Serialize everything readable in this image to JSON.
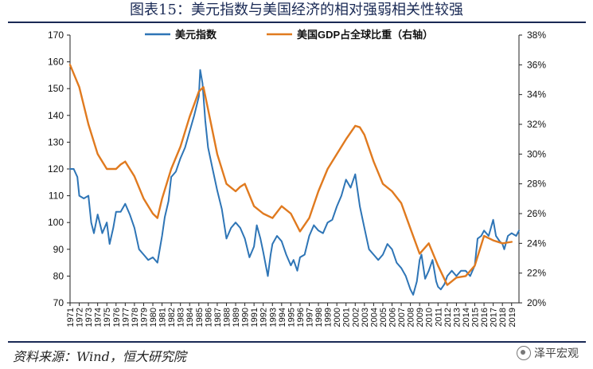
{
  "title": "图表15：美元指数与美国经济的相对强弱相关性较强",
  "source": "资料来源：Wind，恒大研究院",
  "watermark": "泽平宏观",
  "colors": {
    "usd": "#2E75B6",
    "gdp": "#E07A1F",
    "axis": "#222222",
    "title": "#1a2a55"
  },
  "chart_data": {
    "type": "line",
    "title": "图表15：美元指数与美国经济的相对强弱相关性较强",
    "x_ticks": [
      "1971",
      "1972",
      "1973",
      "1974",
      "1975",
      "1976",
      "1977",
      "1978",
      "1979",
      "1980",
      "1981",
      "1982",
      "1983",
      "1984",
      "1985",
      "1986",
      "1987",
      "1988",
      "1989",
      "1990",
      "1991",
      "1992",
      "1993",
      "1994",
      "1995",
      "1996",
      "1997",
      "1998",
      "1999",
      "2000",
      "2001",
      "2002",
      "2003",
      "2004",
      "2005",
      "2006",
      "2007",
      "2008",
      "2009",
      "2010",
      "2011",
      "2012",
      "2013",
      "2014",
      "2015",
      "2016",
      "2017",
      "2018",
      "2019"
    ],
    "xlim": [
      1971,
      2019.8
    ],
    "left_axis": {
      "ylim": [
        70,
        170
      ],
      "ticks": [
        "70",
        "80",
        "90",
        "100",
        "110",
        "120",
        "130",
        "140",
        "150",
        "160",
        "170"
      ]
    },
    "right_axis": {
      "ylim": [
        20,
        38
      ],
      "ticks": [
        "20%",
        "22%",
        "24%",
        "26%",
        "28%",
        "30%",
        "32%",
        "34%",
        "36%",
        "38%"
      ]
    },
    "legend": {
      "position": "top",
      "items": [
        "美元指数",
        "美国GDP占全球比重（右轴）"
      ]
    },
    "series": [
      {
        "name": "美元指数",
        "axis": "left",
        "color": "#2E75B6",
        "x": [
          1971.0,
          1971.4,
          1971.8,
          1972.0,
          1972.5,
          1973.0,
          1973.3,
          1973.6,
          1974.0,
          1974.5,
          1975.0,
          1975.3,
          1975.7,
          1976.0,
          1976.5,
          1977.0,
          1977.5,
          1978.0,
          1978.5,
          1979.0,
          1979.5,
          1980.0,
          1980.5,
          1981.0,
          1981.3,
          1981.7,
          1982.0,
          1982.5,
          1983.0,
          1983.5,
          1984.0,
          1984.5,
          1985.0,
          1985.15,
          1985.4,
          1985.7,
          1986.0,
          1986.5,
          1987.0,
          1987.5,
          1988.0,
          1988.5,
          1989.0,
          1989.5,
          1990.0,
          1990.5,
          1991.0,
          1991.3,
          1991.7,
          1992.0,
          1992.5,
          1992.8,
          1993.0,
          1993.5,
          1994.0,
          1994.5,
          1995.0,
          1995.3,
          1995.7,
          1996.0,
          1996.5,
          1997.0,
          1997.5,
          1998.0,
          1998.5,
          1999.0,
          1999.5,
          2000.0,
          2000.5,
          2001.0,
          2001.5,
          2002.0,
          2002.5,
          2003.0,
          2003.5,
          2004.0,
          2004.5,
          2005.0,
          2005.5,
          2006.0,
          2006.5,
          2007.0,
          2007.5,
          2008.0,
          2008.3,
          2008.7,
          2009.0,
          2009.2,
          2009.6,
          2010.0,
          2010.4,
          2010.8,
          2011.0,
          2011.3,
          2011.7,
          2012.0,
          2012.5,
          2013.0,
          2013.5,
          2014.0,
          2014.5,
          2015.0,
          2015.3,
          2015.7,
          2016.0,
          2016.5,
          2017.0,
          2017.3,
          2017.7,
          2018.0,
          2018.2,
          2018.6,
          2019.0,
          2019.5,
          2019.8
        ],
        "values": [
          120,
          120,
          117,
          110,
          109,
          110,
          100,
          96,
          103,
          96,
          100,
          92,
          98,
          104,
          104,
          107,
          103,
          98,
          90,
          88,
          86,
          87,
          85,
          95,
          102,
          108,
          117,
          119,
          124,
          128,
          134,
          140,
          147,
          157,
          152,
          138,
          128,
          120,
          112,
          105,
          94,
          98,
          100,
          98,
          94,
          87,
          91,
          99,
          94,
          89,
          80,
          88,
          92,
          95,
          93,
          88,
          84,
          86,
          82,
          87,
          88,
          95,
          99,
          97,
          96,
          100,
          101,
          106,
          110,
          116,
          113,
          118,
          106,
          98,
          90,
          88,
          86,
          88,
          92,
          90,
          85,
          83,
          80,
          75,
          73,
          78,
          86,
          88,
          79,
          82,
          86,
          78,
          76,
          75,
          77,
          80,
          82,
          80,
          82,
          82,
          80,
          84,
          94,
          95,
          97,
          95,
          101,
          95,
          93,
          92,
          90,
          95,
          96,
          95,
          97
        ]
      },
      {
        "name": "美国GDP占全球比重（右轴）",
        "axis": "right",
        "color": "#E07A1F",
        "x": [
          1971.0,
          1972.0,
          1973.0,
          1974.0,
          1975.0,
          1976.0,
          1976.5,
          1977.0,
          1978.0,
          1979.0,
          1980.0,
          1980.5,
          1981.0,
          1982.0,
          1983.0,
          1984.0,
          1985.0,
          1985.5,
          1986.0,
          1987.0,
          1988.0,
          1989.0,
          1989.5,
          1990.0,
          1991.0,
          1992.0,
          1993.0,
          1994.0,
          1995.0,
          1996.0,
          1997.0,
          1998.0,
          1999.0,
          2000.0,
          2001.0,
          2002.0,
          2002.5,
          2003.0,
          2004.0,
          2005.0,
          2006.0,
          2007.0,
          2008.0,
          2009.0,
          2010.0,
          2011.0,
          2012.0,
          2013.0,
          2014.0,
          2015.0,
          2016.0,
          2017.0,
          2018.0,
          2019.0
        ],
        "values": [
          36.0,
          34.5,
          32.0,
          30.0,
          29.0,
          29.0,
          29.3,
          29.5,
          28.5,
          27.0,
          26.0,
          25.7,
          27.0,
          29.0,
          30.5,
          32.5,
          34.2,
          34.5,
          33.0,
          30.0,
          28.0,
          27.5,
          27.8,
          28.0,
          26.5,
          26.0,
          25.7,
          26.5,
          26.0,
          24.8,
          25.7,
          27.5,
          29.0,
          30.0,
          31.0,
          31.9,
          31.8,
          31.3,
          29.5,
          28.0,
          27.5,
          26.7,
          25.0,
          23.3,
          24.0,
          22.5,
          21.2,
          21.7,
          21.8,
          22.5,
          24.5,
          24.2,
          24.0,
          24.1
        ]
      }
    ]
  }
}
